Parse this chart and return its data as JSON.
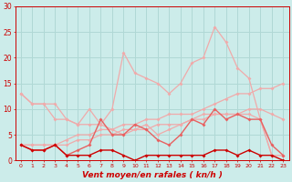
{
  "x": [
    0,
    1,
    2,
    3,
    4,
    5,
    6,
    7,
    8,
    9,
    10,
    11,
    12,
    13,
    14,
    15,
    16,
    17,
    18,
    19,
    20,
    21,
    22,
    23
  ],
  "series_light1": [
    13,
    11,
    11,
    11,
    8,
    7,
    7,
    7,
    6,
    5,
    6,
    7,
    5,
    6,
    7,
    8,
    9,
    9,
    9,
    9,
    9,
    8,
    1,
    1
  ],
  "series_light2": [
    3,
    3,
    3,
    3,
    4,
    5,
    5,
    6,
    6,
    7,
    7,
    8,
    8,
    9,
    9,
    9,
    10,
    11,
    12,
    13,
    13,
    14,
    14,
    15
  ],
  "series_light3": [
    3,
    3,
    3,
    3,
    3,
    4,
    4,
    5,
    5,
    6,
    6,
    6,
    7,
    7,
    7,
    8,
    8,
    9,
    9,
    9,
    10,
    10,
    9,
    8
  ],
  "series_dark1": [
    3,
    2,
    2,
    3,
    1,
    2,
    3,
    8,
    5,
    5,
    7,
    6,
    4,
    3,
    5,
    8,
    7,
    10,
    8,
    9,
    8,
    8,
    3,
    1
  ],
  "series_dark2": [
    3,
    2,
    2,
    3,
    1,
    1,
    1,
    2,
    2,
    1,
    0,
    1,
    1,
    1,
    1,
    1,
    1,
    2,
    2,
    1,
    2,
    1,
    1,
    0
  ],
  "series_bright": [
    13,
    11,
    11,
    8,
    8,
    7,
    10,
    7,
    10,
    21,
    17,
    16,
    15,
    13,
    15,
    19,
    20,
    26,
    23,
    18,
    16,
    8,
    1,
    1
  ],
  "background_color": "#ccecea",
  "grid_color": "#b0d8d5",
  "color_lightpink": "#f0aaaa",
  "color_medium": "#e86060",
  "color_dark": "#cc0000",
  "xlabel": "Vent moyen/en rafales ( kn/h )",
  "ylim": [
    0,
    30
  ],
  "xlim_min": -0.5,
  "xlim_max": 23.5
}
